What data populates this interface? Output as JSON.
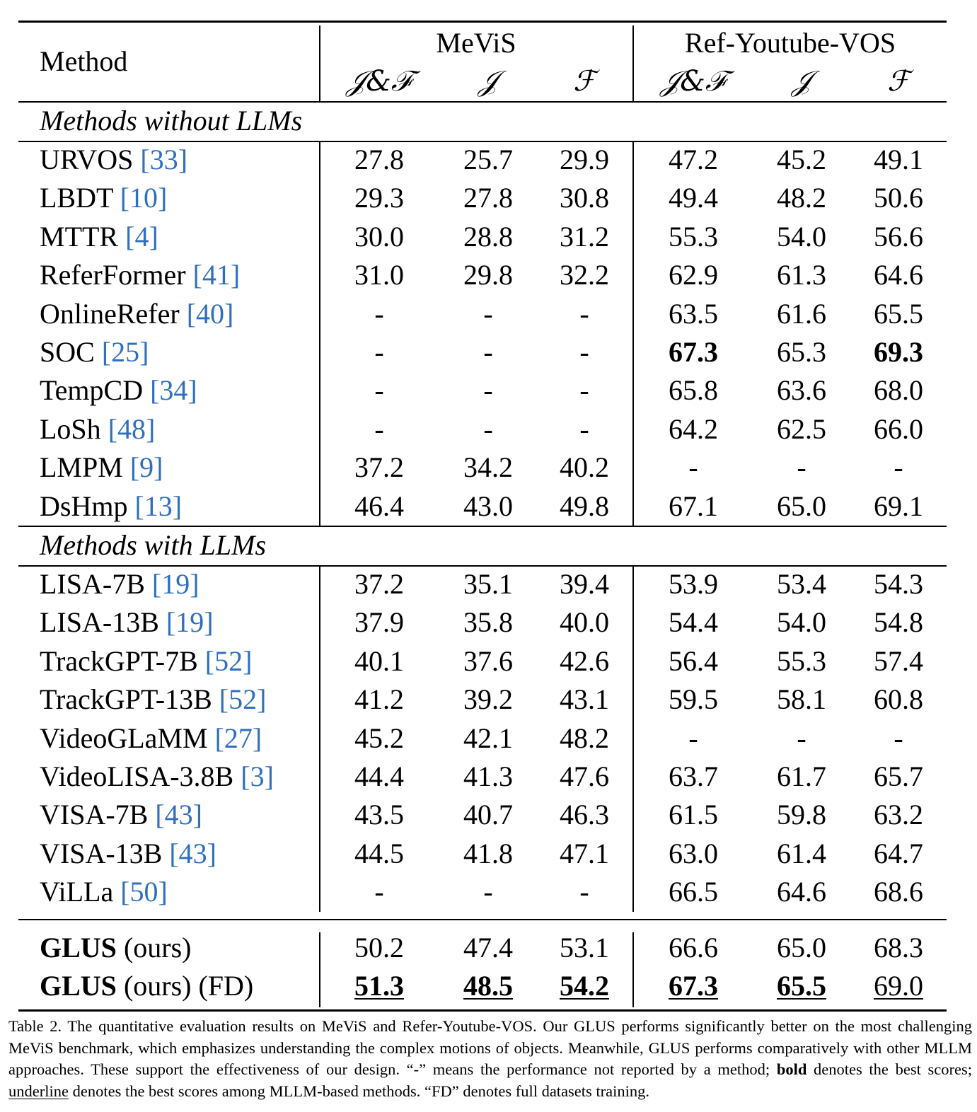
{
  "table": {
    "header": {
      "method": "Method",
      "groups": [
        "MeViS",
        "Ref-Youtube-VOS"
      ],
      "metrics": [
        "𝒥&ℱ",
        "𝒥",
        "ℱ",
        "𝒥&ℱ",
        "𝒥",
        "ℱ"
      ]
    },
    "sections": [
      {
        "title": "Methods without LLMs",
        "rows": [
          {
            "name": "URVOS",
            "ref": "33",
            "values": [
              "27.8",
              "25.7",
              "29.9",
              "47.2",
              "45.2",
              "49.1"
            ]
          },
          {
            "name": "LBDT",
            "ref": "10",
            "values": [
              "29.3",
              "27.8",
              "30.8",
              "49.4",
              "48.2",
              "50.6"
            ]
          },
          {
            "name": "MTTR",
            "ref": "4",
            "values": [
              "30.0",
              "28.8",
              "31.2",
              "55.3",
              "54.0",
              "56.6"
            ]
          },
          {
            "name": "ReferFormer",
            "ref": "41",
            "values": [
              "31.0",
              "29.8",
              "32.2",
              "62.9",
              "61.3",
              "64.6"
            ]
          },
          {
            "name": "OnlineRefer",
            "ref": "40",
            "values": [
              "-",
              "-",
              "-",
              "63.5",
              "61.6",
              "65.5"
            ]
          },
          {
            "name": "SOC",
            "ref": "25",
            "values": [
              "-",
              "-",
              "-",
              "67.3",
              "65.3",
              "69.3"
            ]
          },
          {
            "name": "TempCD",
            "ref": "34",
            "values": [
              "-",
              "-",
              "-",
              "65.8",
              "63.6",
              "68.0"
            ]
          },
          {
            "name": "LoSh",
            "ref": "48",
            "values": [
              "-",
              "-",
              "-",
              "64.2",
              "62.5",
              "66.0"
            ]
          },
          {
            "name": "LMPM",
            "ref": "9",
            "values": [
              "37.2",
              "34.2",
              "40.2",
              "-",
              "-",
              "-"
            ]
          },
          {
            "name": "DsHmp",
            "ref": "13",
            "values": [
              "46.4",
              "43.0",
              "49.8",
              "67.1",
              "65.0",
              "69.1"
            ]
          }
        ]
      },
      {
        "title": "Methods with LLMs",
        "rows": [
          {
            "name": "LISA-7B",
            "ref": "19",
            "values": [
              "37.2",
              "35.1",
              "39.4",
              "53.9",
              "53.4",
              "54.3"
            ]
          },
          {
            "name": "LISA-13B",
            "ref": "19",
            "values": [
              "37.9",
              "35.8",
              "40.0",
              "54.4",
              "54.0",
              "54.8"
            ]
          },
          {
            "name": "TrackGPT-7B",
            "ref": "52",
            "values": [
              "40.1",
              "37.6",
              "42.6",
              "56.4",
              "55.3",
              "57.4"
            ]
          },
          {
            "name": "TrackGPT-13B",
            "ref": "52",
            "values": [
              "41.2",
              "39.2",
              "43.1",
              "59.5",
              "58.1",
              "60.8"
            ]
          },
          {
            "name": "VideoGLaMM",
            "ref": "27",
            "values": [
              "45.2",
              "42.1",
              "48.2",
              "-",
              "-",
              "-"
            ]
          },
          {
            "name": "VideoLISA-3.8B",
            "ref": "3",
            "values": [
              "44.4",
              "41.3",
              "47.6",
              "63.7",
              "61.7",
              "65.7"
            ]
          },
          {
            "name": "VISA-7B",
            "ref": "43",
            "values": [
              "43.5",
              "40.7",
              "46.3",
              "61.5",
              "59.8",
              "63.2"
            ]
          },
          {
            "name": "VISA-13B",
            "ref": "43",
            "values": [
              "44.5",
              "41.8",
              "47.1",
              "63.0",
              "61.4",
              "64.7"
            ]
          },
          {
            "name": "ViLLa",
            "ref": "50",
            "values": [
              "-",
              "-",
              "-",
              "66.5",
              "64.6",
              "68.6"
            ]
          }
        ]
      }
    ],
    "ours": [
      {
        "name_bold": "GLUS",
        "name_rest": " (ours)",
        "values": [
          "50.2",
          "47.4",
          "53.1",
          "66.6",
          "65.0",
          "68.3"
        ]
      },
      {
        "name_bold": "GLUS",
        "name_rest": " (ours) (FD)",
        "values": [
          "51.3",
          "48.5",
          "54.2",
          "67.3",
          "65.5",
          "69.0"
        ]
      }
    ]
  },
  "caption": {
    "p1": "Table 2. The quantitative evaluation results on MeViS and Refer-Youtube-VOS. Our GLUS performs significantly better on the most challenging MeViS benchmark, which emphasizes understanding the complex motions of objects. Meanwhile, GLUS performs comparatively with other MLLM approaches. These support the effectiveness of our design. “-” means the performance not reported by a method; ",
    "bold_word": "bold",
    "p2": " denotes the best scores; ",
    "underline_word": "underline",
    "p3": " denotes the best scores among MLLM-based methods. “FD” denotes full datasets training."
  }
}
